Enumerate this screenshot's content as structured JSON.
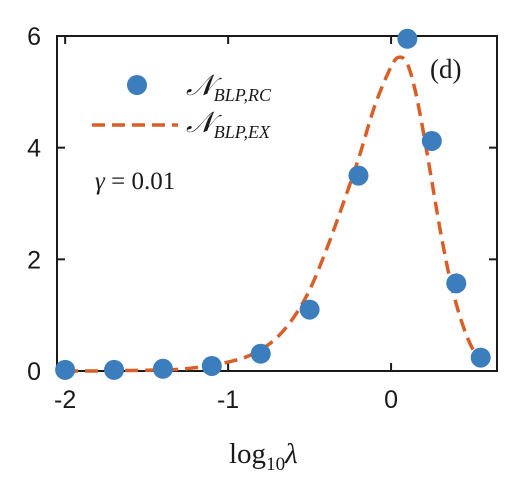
{
  "chart_data": {
    "type": "line",
    "panel_label": "(d)",
    "xlabel": {
      "prefix": "log",
      "sub": "10",
      "var": "λ"
    },
    "x_ticks": [
      -2,
      -1,
      0
    ],
    "y_ticks": [
      0,
      2,
      4,
      6
    ],
    "xlim": [
      -2.05,
      0.65
    ],
    "ylim": [
      0,
      6
    ],
    "grid": false,
    "legend_placement": "top-left",
    "annotation": {
      "var": "γ",
      "rest": " = 0.01"
    },
    "series": [
      {
        "legend": {
          "main": "𝒩",
          "sub": "BLP,RC"
        },
        "style": "markers",
        "color": "#3b7dbd",
        "x": [
          -2.0,
          -1.7,
          -1.4,
          -1.1,
          -0.8,
          -0.5,
          -0.2,
          0.1,
          0.25,
          0.4,
          0.55
        ],
        "y": [
          0.02,
          0.02,
          0.04,
          0.09,
          0.31,
          1.1,
          3.5,
          5.95,
          4.12,
          1.57,
          0.24
        ]
      },
      {
        "legend": {
          "main": "𝒩",
          "sub": "BLP,EX"
        },
        "style": "dashed",
        "color": "#d95f27",
        "x": [
          -2.0,
          -1.8,
          -1.6,
          -1.4,
          -1.3,
          -1.2,
          -1.1,
          -1.0,
          -0.9,
          -0.8,
          -0.7,
          -0.6,
          -0.5,
          -0.4,
          -0.3,
          -0.2,
          -0.1,
          0.0,
          0.05,
          0.1,
          0.15,
          0.2,
          0.25,
          0.3,
          0.35,
          0.4,
          0.45,
          0.5,
          0.55,
          0.6
        ],
        "y": [
          0.0,
          0.0,
          0.01,
          0.02,
          0.03,
          0.06,
          0.1,
          0.16,
          0.24,
          0.38,
          0.6,
          0.95,
          1.45,
          2.15,
          2.95,
          3.8,
          4.75,
          5.45,
          5.62,
          5.5,
          5.0,
          4.25,
          3.4,
          2.55,
          1.8,
          1.2,
          0.74,
          0.4,
          0.2,
          0.08
        ]
      }
    ]
  }
}
